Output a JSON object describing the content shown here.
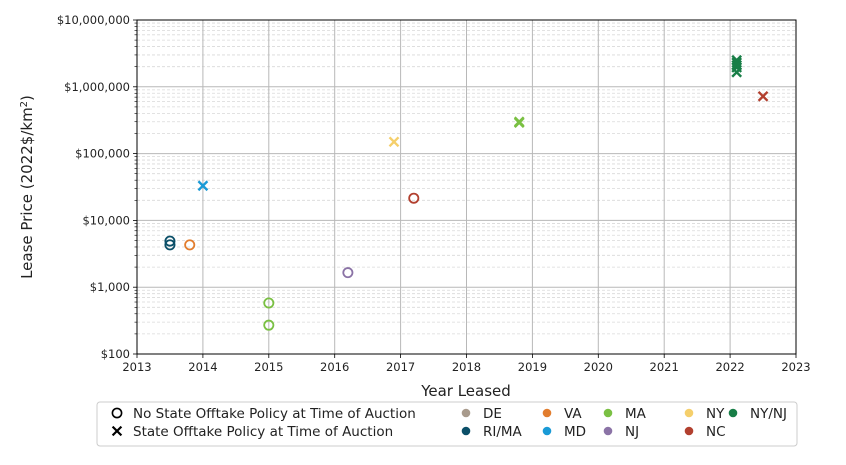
{
  "chart_data": {
    "type": "scatter",
    "xlabel": "Year Leased",
    "ylabel_main": "Lease Price (2022$/km",
    "ylabel_sup": "2",
    "ylabel_close": ")",
    "x_ticks": [
      "2013",
      "2014",
      "2015",
      "2016",
      "2017",
      "2018",
      "2019",
      "2020",
      "2021",
      "2022",
      "2023"
    ],
    "y_ticks": [
      "$100",
      "$1,000",
      "$10,000",
      "$100,000",
      "$1,000,000",
      "$10,000,000"
    ],
    "xlim": [
      2013,
      2023
    ],
    "ylim": [
      100,
      10000000
    ],
    "y_scale": "log",
    "grid": true,
    "legend": {
      "placement": "bottom",
      "markers": [
        {
          "label": "No State Offtake Policy at Time of Auction",
          "symbol": "circle"
        },
        {
          "label": "State Offtake Policy at Time of Auction",
          "symbol": "x"
        }
      ],
      "states": [
        {
          "label": "DE",
          "color": "#a89a8c"
        },
        {
          "label": "RI/MA",
          "color": "#0b4f68"
        },
        {
          "label": "VA",
          "color": "#e27d2e"
        },
        {
          "label": "MD",
          "color": "#1a9ad6"
        },
        {
          "label": "MA",
          "color": "#7ac043"
        },
        {
          "label": "NJ",
          "color": "#8b73a6"
        },
        {
          "label": "NY",
          "color": "#f5cf6b"
        },
        {
          "label": "NC",
          "color": "#b2402f"
        },
        {
          "label": "NY/NJ",
          "color": "#187e47"
        }
      ]
    },
    "points": [
      {
        "x": 2013.5,
        "y": 4900,
        "state": "RI/MA",
        "marker": "circle"
      },
      {
        "x": 2013.5,
        "y": 4300,
        "state": "RI/MA",
        "marker": "circle"
      },
      {
        "x": 2013.8,
        "y": 4300,
        "state": "VA",
        "marker": "circle"
      },
      {
        "x": 2014.0,
        "y": 33000,
        "state": "MD",
        "marker": "x"
      },
      {
        "x": 2015.0,
        "y": 580,
        "state": "MA",
        "marker": "circle"
      },
      {
        "x": 2015.0,
        "y": 270,
        "state": "MA",
        "marker": "circle"
      },
      {
        "x": 2016.2,
        "y": 1650,
        "state": "NJ",
        "marker": "circle"
      },
      {
        "x": 2016.9,
        "y": 150000,
        "state": "NY",
        "marker": "x"
      },
      {
        "x": 2017.2,
        "y": 21500,
        "state": "NC",
        "marker": "circle"
      },
      {
        "x": 2018.8,
        "y": 300000,
        "state": "MA",
        "marker": "x"
      },
      {
        "x": 2018.8,
        "y": 290000,
        "state": "MA",
        "marker": "x"
      },
      {
        "x": 2022.1,
        "y": 2500000,
        "state": "NY/NJ",
        "marker": "x"
      },
      {
        "x": 2022.1,
        "y": 2300000,
        "state": "NY/NJ",
        "marker": "x"
      },
      {
        "x": 2022.1,
        "y": 2100000,
        "state": "NY/NJ",
        "marker": "x"
      },
      {
        "x": 2022.1,
        "y": 1950000,
        "state": "NY/NJ",
        "marker": "x"
      },
      {
        "x": 2022.1,
        "y": 1650000,
        "state": "NY/NJ",
        "marker": "x"
      },
      {
        "x": 2022.5,
        "y": 720000,
        "state": "NC",
        "marker": "x"
      }
    ]
  }
}
